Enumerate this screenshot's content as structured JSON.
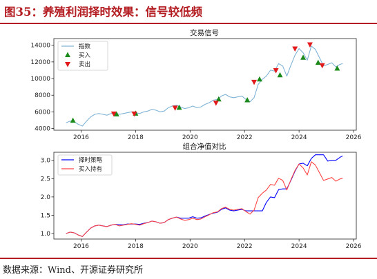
{
  "caption": "图35：养殖利润择时效果：信号较低频",
  "source": "数据来源：Wind、开源证券研究所",
  "colors": {
    "brand_red": "#b31d22",
    "index_line": "#7fb3d5",
    "buy_marker": "#1a8a1a",
    "sell_marker": "#e31a1c",
    "strategy_line": "#0000ff",
    "buyhold_line": "#ff4444"
  },
  "chart_data": [
    {
      "type": "line",
      "title": "交易信号",
      "xlim": [
        2015.0,
        2026.1
      ],
      "ylim": [
        3800,
        14800
      ],
      "xticks": [
        2016,
        2018,
        2020,
        2022,
        2024,
        2026
      ],
      "yticks": [
        4000,
        6000,
        8000,
        10000,
        12000,
        14000
      ],
      "grid": false,
      "legend_position": "upper-left",
      "series": [
        {
          "name": "指数",
          "x": [
            2015.45,
            2015.6,
            2015.75,
            2015.9,
            2016.05,
            2016.2,
            2016.35,
            2016.5,
            2016.65,
            2016.8,
            2016.95,
            2017.1,
            2017.25,
            2017.4,
            2017.55,
            2017.7,
            2017.85,
            2018.0,
            2018.15,
            2018.3,
            2018.45,
            2018.6,
            2018.75,
            2018.9,
            2019.05,
            2019.2,
            2019.35,
            2019.5,
            2019.65,
            2019.8,
            2019.95,
            2020.1,
            2020.25,
            2020.4,
            2020.55,
            2020.7,
            2020.85,
            2021.0,
            2021.15,
            2021.3,
            2021.45,
            2021.6,
            2021.75,
            2021.9,
            2022.05,
            2022.2,
            2022.35,
            2022.5,
            2022.65,
            2022.8,
            2022.95,
            2023.1,
            2023.25,
            2023.4,
            2023.55,
            2023.7,
            2023.85,
            2024.0,
            2024.15,
            2024.3,
            2024.45,
            2024.6,
            2024.75,
            2024.9,
            2025.05,
            2025.2,
            2025.35,
            2025.5,
            2025.6
          ],
          "values": [
            4700,
            4900,
            4800,
            4500,
            4300,
            4900,
            5400,
            5700,
            5800,
            5700,
            5600,
            5800,
            5900,
            5700,
            5800,
            5900,
            6000,
            5900,
            5800,
            6000,
            6100,
            6300,
            6200,
            6000,
            6100,
            6500,
            6700,
            6800,
            6600,
            6400,
            6500,
            6700,
            6500,
            6600,
            6900,
            7100,
            7400,
            7500,
            7900,
            8100,
            7800,
            7700,
            7800,
            7900,
            7500,
            7200,
            7700,
            9300,
            9900,
            10300,
            11000,
            10900,
            11800,
            11500,
            10300,
            11600,
            12800,
            13600,
            13100,
            12200,
            13900,
            13500,
            12500,
            11500,
            11700,
            11900,
            11400,
            11700,
            11800
          ]
        }
      ],
      "markers": {
        "buy_name": "买入",
        "sell_name": "卖出",
        "buy": [
          {
            "x": 2015.7,
            "y": 4950
          },
          {
            "x": 2017.3,
            "y": 5700
          },
          {
            "x": 2018.0,
            "y": 5800
          },
          {
            "x": 2019.6,
            "y": 6500
          },
          {
            "x": 2021.05,
            "y": 7500
          },
          {
            "x": 2022.1,
            "y": 7400
          },
          {
            "x": 2022.55,
            "y": 9900
          },
          {
            "x": 2023.3,
            "y": 10400
          },
          {
            "x": 2024.15,
            "y": 12500
          },
          {
            "x": 2024.7,
            "y": 11900
          },
          {
            "x": 2025.4,
            "y": 11200
          }
        ],
        "sell": [
          {
            "x": 2017.2,
            "y": 5800
          },
          {
            "x": 2017.95,
            "y": 5800
          },
          {
            "x": 2019.45,
            "y": 6500
          },
          {
            "x": 2020.95,
            "y": 7100
          },
          {
            "x": 2022.35,
            "y": 9600
          },
          {
            "x": 2023.15,
            "y": 11000
          },
          {
            "x": 2023.85,
            "y": 13600
          },
          {
            "x": 2024.4,
            "y": 14100
          },
          {
            "x": 2024.85,
            "y": 11600
          }
        ]
      }
    },
    {
      "type": "line",
      "title": "组合净值对比",
      "xlim": [
        2015.0,
        2026.1
      ],
      "ylim": [
        0.85,
        3.22
      ],
      "xticks": [
        2016,
        2018,
        2020,
        2022,
        2024,
        2026
      ],
      "yticks": [
        1.0,
        1.5,
        2.0,
        2.5,
        3.0
      ],
      "grid": false,
      "legend_position": "upper-left",
      "series": [
        {
          "name": "择时策略",
          "x": [
            2015.45,
            2015.6,
            2015.75,
            2015.9,
            2016.05,
            2016.2,
            2016.35,
            2016.5,
            2016.65,
            2016.8,
            2016.95,
            2017.1,
            2017.25,
            2017.4,
            2017.55,
            2017.7,
            2017.85,
            2018.0,
            2018.15,
            2018.3,
            2018.45,
            2018.6,
            2018.75,
            2018.9,
            2019.05,
            2019.2,
            2019.35,
            2019.5,
            2019.65,
            2019.8,
            2019.95,
            2020.1,
            2020.25,
            2020.4,
            2020.55,
            2020.7,
            2020.85,
            2021.0,
            2021.15,
            2021.3,
            2021.45,
            2021.6,
            2021.75,
            2021.9,
            2022.05,
            2022.2,
            2022.35,
            2022.5,
            2022.65,
            2022.8,
            2022.95,
            2023.1,
            2023.25,
            2023.4,
            2023.55,
            2023.7,
            2023.85,
            2024.0,
            2024.15,
            2024.3,
            2024.45,
            2024.6,
            2024.75,
            2024.9,
            2025.05,
            2025.2,
            2025.35,
            2025.5,
            2025.6
          ],
          "values": [
            1.0,
            1.04,
            1.02,
            0.96,
            0.92,
            1.04,
            1.15,
            1.21,
            1.23,
            1.21,
            1.19,
            1.23,
            1.25,
            1.24,
            1.24,
            1.26,
            1.26,
            1.26,
            1.25,
            1.28,
            1.3,
            1.34,
            1.32,
            1.28,
            1.3,
            1.38,
            1.42,
            1.45,
            1.42,
            1.42,
            1.42,
            1.46,
            1.42,
            1.43,
            1.48,
            1.52,
            1.56,
            1.58,
            1.66,
            1.7,
            1.64,
            1.62,
            1.64,
            1.66,
            1.62,
            1.62,
            1.62,
            1.62,
            1.62,
            1.85,
            2.0,
            1.98,
            2.2,
            2.22,
            2.22,
            2.45,
            2.7,
            2.9,
            2.92,
            2.85,
            3.05,
            3.15,
            3.15,
            3.15,
            2.98,
            3.0,
            3.0,
            3.08,
            3.12
          ]
        },
        {
          "name": "买入持有",
          "x": [
            2015.45,
            2015.6,
            2015.75,
            2015.9,
            2016.05,
            2016.2,
            2016.35,
            2016.5,
            2016.65,
            2016.8,
            2016.95,
            2017.1,
            2017.25,
            2017.4,
            2017.55,
            2017.7,
            2017.85,
            2018.0,
            2018.15,
            2018.3,
            2018.45,
            2018.6,
            2018.75,
            2018.9,
            2019.05,
            2019.2,
            2019.35,
            2019.5,
            2019.65,
            2019.8,
            2019.95,
            2020.1,
            2020.25,
            2020.4,
            2020.55,
            2020.7,
            2020.85,
            2021.0,
            2021.15,
            2021.3,
            2021.45,
            2021.6,
            2021.75,
            2021.9,
            2022.05,
            2022.2,
            2022.35,
            2022.5,
            2022.65,
            2022.8,
            2022.95,
            2023.1,
            2023.25,
            2023.4,
            2023.55,
            2023.7,
            2023.85,
            2024.0,
            2024.15,
            2024.3,
            2024.45,
            2024.6,
            2024.75,
            2024.9,
            2025.05,
            2025.2,
            2025.35,
            2025.5,
            2025.6
          ],
          "values": [
            1.0,
            1.04,
            1.02,
            0.96,
            0.92,
            1.04,
            1.15,
            1.21,
            1.23,
            1.21,
            1.19,
            1.23,
            1.25,
            1.21,
            1.23,
            1.25,
            1.27,
            1.25,
            1.23,
            1.27,
            1.3,
            1.34,
            1.32,
            1.28,
            1.3,
            1.38,
            1.42,
            1.45,
            1.4,
            1.36,
            1.38,
            1.42,
            1.38,
            1.4,
            1.46,
            1.51,
            1.57,
            1.59,
            1.68,
            1.72,
            1.66,
            1.64,
            1.66,
            1.68,
            1.6,
            1.53,
            1.64,
            1.98,
            2.1,
            2.19,
            2.34,
            2.32,
            2.51,
            2.45,
            2.19,
            2.47,
            2.72,
            2.9,
            2.79,
            2.6,
            2.96,
            2.87,
            2.66,
            2.45,
            2.49,
            2.53,
            2.43,
            2.49,
            2.51
          ]
        }
      ]
    }
  ]
}
